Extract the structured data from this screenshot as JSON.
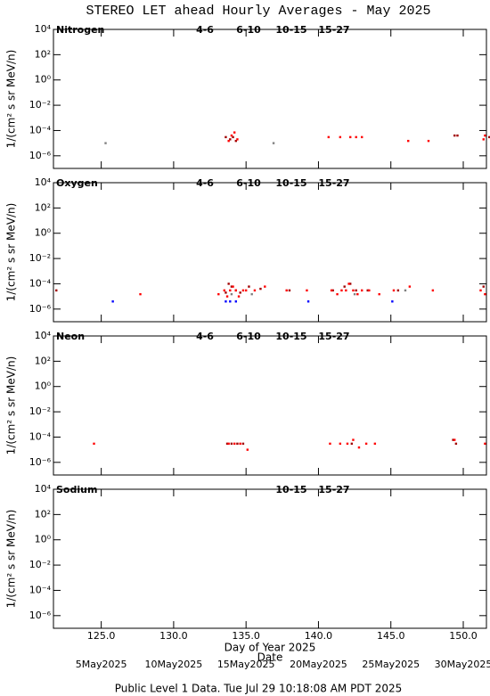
{
  "page": {
    "title": "STEREO LET ahead Hourly Averages - May 2025",
    "footer": "Public Level 1 Data. Tue Jul 29 10:18:08 AM PDT 2025"
  },
  "chart_data": [
    {
      "type": "scatter",
      "title": "Nitrogen",
      "y_label": "1/(cm² s sr MeV/n)",
      "log_y": true,
      "xlim": [
        121.7,
        151.6
      ],
      "xticks": [
        125,
        130,
        135,
        140,
        145,
        150
      ],
      "ylim": [
        1e-07,
        10000
      ],
      "yticks": [
        {
          "value": 1e-06,
          "label": "10⁻⁶"
        },
        {
          "value": 0.0001,
          "label": "10⁻⁴"
        },
        {
          "value": 0.01,
          "label": "10⁻²"
        },
        {
          "value": 1,
          "label": "10⁰"
        },
        {
          "value": 100,
          "label": "10²"
        },
        {
          "value": 10000,
          "label": "10⁴"
        }
      ],
      "series": [
        {
          "name": "4-6",
          "color": "#a00000",
          "x": [
            133.6,
            133.9,
            134.1,
            134.3,
            149.4,
            149.6,
            151.8
          ],
          "values": [
            3e-05,
            2e-05,
            3e-05,
            1.5e-05,
            4e-05,
            4e-05,
            3e-05
          ]
        },
        {
          "name": "6-10",
          "color": "#ff0000",
          "x": [
            133.8,
            134.0,
            134.2,
            134.4,
            140.7,
            141.5,
            142.2,
            142.6,
            143.0,
            146.2,
            147.6,
            151.4,
            151.5
          ],
          "values": [
            1.5e-05,
            4e-05,
            7e-05,
            2e-05,
            3e-05,
            3e-05,
            3e-05,
            3e-05,
            3e-05,
            1.5e-05,
            1.5e-05,
            2e-05,
            4e-05
          ]
        },
        {
          "name": "10-15",
          "color": "#808080",
          "x": [
            125.3,
            136.9
          ],
          "values": [
            1e-05,
            1e-05
          ]
        },
        {
          "name": "15-27",
          "color": "#0000ff",
          "x": [],
          "values": []
        }
      ]
    },
    {
      "type": "scatter",
      "title": "Oxygen",
      "y_label": "1/(cm² s sr MeV/n)",
      "log_y": true,
      "xlim": [
        121.7,
        151.6
      ],
      "xticks": [
        125,
        130,
        135,
        140,
        145,
        150
      ],
      "ylim": [
        1e-07,
        10000
      ],
      "yticks": [
        {
          "value": 1e-06,
          "label": "10⁻⁶"
        },
        {
          "value": 0.0001,
          "label": "10⁻⁴"
        },
        {
          "value": 0.01,
          "label": "10⁻²"
        },
        {
          "value": 1,
          "label": "10⁰"
        },
        {
          "value": 100,
          "label": "10²"
        },
        {
          "value": 10000,
          "label": "10⁴"
        }
      ],
      "series": [
        {
          "name": "4-6",
          "color": "#a00000",
          "x": [
            121.9,
            133.6,
            133.8,
            134.0,
            134.3,
            134.6,
            135.2,
            136.0,
            138.0,
            141.0,
            141.8,
            142.2,
            142.6,
            143.4,
            145.5,
            151.4
          ],
          "values": [
            3e-05,
            2e-05,
            0.0001,
            6e-05,
            3e-05,
            2e-05,
            6e-05,
            4e-05,
            3e-05,
            3e-05,
            6e-05,
            0.0001,
            3e-05,
            3e-05,
            3e-05,
            6e-05
          ]
        },
        {
          "name": "6-10",
          "color": "#ff0000",
          "x": [
            127.7,
            133.1,
            133.5,
            133.7,
            133.9,
            134.1,
            134.3,
            134.5,
            134.8,
            135.0,
            135.6,
            136.3,
            137.8,
            139.2,
            140.9,
            141.3,
            141.6,
            141.9,
            142.1,
            142.4,
            142.7,
            143.0,
            143.5,
            144.2,
            145.2,
            146.3,
            147.9,
            151.2,
            151.5
          ],
          "values": [
            1.5e-05,
            1.5e-05,
            3e-05,
            1e-05,
            3e-05,
            6e-05,
            3e-05,
            1e-05,
            3e-05,
            3e-05,
            3e-05,
            6e-05,
            3e-05,
            3e-05,
            3e-05,
            1.5e-05,
            3e-05,
            3e-05,
            0.0001,
            3e-05,
            1.5e-05,
            3e-05,
            3e-05,
            1.5e-05,
            3e-05,
            6e-05,
            3e-05,
            3e-05,
            1.5e-05
          ]
        },
        {
          "name": "10-15",
          "color": "#808080",
          "x": [
            134.0,
            135.4,
            142.5,
            146.0
          ],
          "values": [
            1.5e-05,
            1.5e-05,
            1.5e-05,
            3e-05
          ]
        },
        {
          "name": "15-27",
          "color": "#0000ff",
          "x": [
            125.8,
            133.6,
            133.9,
            134.3,
            139.3,
            145.1
          ],
          "values": [
            4e-06,
            4e-06,
            4e-06,
            4e-06,
            4e-06,
            4e-06
          ]
        }
      ]
    },
    {
      "type": "scatter",
      "title": "Neon",
      "y_label": "1/(cm² s sr MeV/n)",
      "log_y": true,
      "xlim": [
        121.7,
        151.6
      ],
      "xticks": [
        125,
        130,
        135,
        140,
        145,
        150
      ],
      "ylim": [
        1e-07,
        10000
      ],
      "yticks": [
        {
          "value": 1e-06,
          "label": "10⁻⁶"
        },
        {
          "value": 0.0001,
          "label": "10⁻⁴"
        },
        {
          "value": 0.01,
          "label": "10⁻²"
        },
        {
          "value": 1,
          "label": "10⁰"
        },
        {
          "value": 100,
          "label": "10²"
        },
        {
          "value": 10000,
          "label": "10⁴"
        }
      ],
      "series": [
        {
          "name": "4-6",
          "color": "#a00000",
          "x": [
            133.7,
            134.0,
            134.4,
            134.8,
            142.3,
            149.3,
            149.5
          ],
          "values": [
            3e-05,
            3e-05,
            3e-05,
            3e-05,
            3e-05,
            6e-05,
            3e-05
          ]
        },
        {
          "name": "6-10",
          "color": "#ff0000",
          "x": [
            124.5,
            133.8,
            134.2,
            134.6,
            135.1,
            140.8,
            141.5,
            142.0,
            142.4,
            142.8,
            143.3,
            143.9,
            149.4,
            151.5
          ],
          "values": [
            3e-05,
            3e-05,
            3e-05,
            3e-05,
            1e-05,
            3e-05,
            3e-05,
            3e-05,
            6e-05,
            1.5e-05,
            3e-05,
            3e-05,
            6e-05,
            3e-05
          ]
        },
        {
          "name": "10-15",
          "color": "#808080",
          "x": [],
          "values": []
        },
        {
          "name": "15-27",
          "color": "#0000ff",
          "x": [],
          "values": []
        }
      ]
    },
    {
      "type": "scatter",
      "title": "Sodium",
      "y_label": "1/(cm² s sr MeV/n)",
      "log_y": true,
      "x_label": "Day of Year 2025",
      "x2_label": "Date",
      "xlim": [
        121.7,
        151.6
      ],
      "xticks": [
        {
          "value": 125,
          "label": "125.0"
        },
        {
          "value": 130,
          "label": "130.0"
        },
        {
          "value": 135,
          "label": "135.0"
        },
        {
          "value": 140,
          "label": "140.0"
        },
        {
          "value": 145,
          "label": "145.0"
        },
        {
          "value": 150,
          "label": "150.0"
        }
      ],
      "x2ticks": [
        {
          "value": 125,
          "label": "5May2025"
        },
        {
          "value": 130,
          "label": "10May2025"
        },
        {
          "value": 135,
          "label": "15May2025"
        },
        {
          "value": 140,
          "label": "20May2025"
        },
        {
          "value": 145,
          "label": "25May2025"
        },
        {
          "value": 150,
          "label": "30May2025"
        }
      ],
      "ylim": [
        1e-07,
        10000
      ],
      "yticks": [
        {
          "value": 1e-06,
          "label": "10⁻⁶"
        },
        {
          "value": 0.0001,
          "label": "10⁻⁴"
        },
        {
          "value": 0.01,
          "label": "10⁻²"
        },
        {
          "value": 1,
          "label": "10⁰"
        },
        {
          "value": 100,
          "label": "10²"
        },
        {
          "value": 10000,
          "label": "10⁴"
        }
      ],
      "series": [
        {
          "name": "10-15",
          "color": "#808080",
          "x": [],
          "values": []
        },
        {
          "name": "15-27",
          "color": "#0000ff",
          "x": [],
          "values": []
        }
      ]
    }
  ]
}
